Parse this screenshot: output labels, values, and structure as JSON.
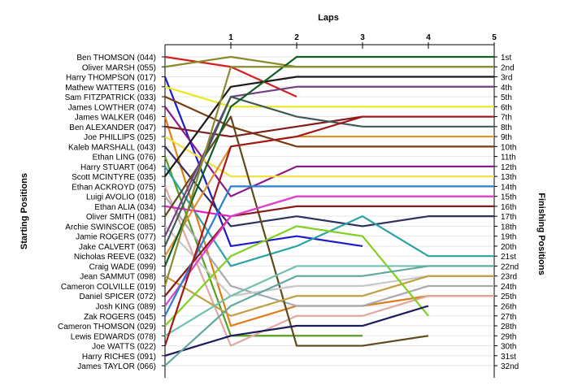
{
  "chart_data": {
    "type": "line",
    "title": "Laps",
    "ylabel_left": "Starting Positions",
    "ylabel_right": "Finishing Positions",
    "x": [
      0,
      1,
      2,
      3,
      4,
      5
    ],
    "x_tick_labels": [
      "1",
      "2",
      "3",
      "4",
      "5"
    ],
    "ylim": [
      1,
      32
    ],
    "grid": true,
    "y_inverted": true,
    "finishing_labels": [
      "1st",
      "2nd",
      "3rd",
      "4th",
      "5th",
      "6th",
      "7th",
      "8th",
      "9th",
      "10th",
      "11th",
      "12th",
      "13th",
      "14th",
      "15th",
      "16th",
      "17th",
      "18th",
      "19th",
      "20th",
      "21st",
      "22nd",
      "23rd",
      "24th",
      "25th",
      "26th",
      "27th",
      "28th",
      "29th",
      "30th",
      "31st",
      "32nd"
    ],
    "series": [
      {
        "name": "Ben THOMSON (044)",
        "color": "#d22020",
        "values": [
          1,
          2,
          5,
          null,
          null,
          null
        ]
      },
      {
        "name": "Oliver MARSH (055)",
        "color": "#8a8a2a",
        "values": [
          2,
          1,
          2,
          2,
          2,
          2
        ]
      },
      {
        "name": "Harry THOMPSON (017)",
        "color": "#1c1cc8",
        "values": [
          3,
          20,
          19,
          20,
          null,
          null
        ]
      },
      {
        "name": "Mathew WATTERS (016)",
        "color": "#e8e81a",
        "values": [
          4,
          6,
          6,
          6,
          6,
          6
        ]
      },
      {
        "name": "Sam FITZPATRICK (033)",
        "color": "#7a3c12",
        "values": [
          5,
          8,
          10,
          10,
          10,
          10
        ]
      },
      {
        "name": "James LOWTHER (074)",
        "color": "#8c1c8c",
        "values": [
          6,
          15,
          12,
          12,
          12,
          12
        ]
      },
      {
        "name": "James WALKER (046)",
        "color": "#e07c1a",
        "values": [
          7,
          28,
          26,
          26,
          25,
          25
        ]
      },
      {
        "name": "Ben ALEXANDER (047)",
        "color": "#801c1c",
        "values": [
          8,
          9,
          8,
          7,
          7,
          7
        ]
      },
      {
        "name": "Joe PHILLIPS (025)",
        "color": "#f0e040",
        "values": [
          9,
          13,
          13,
          13,
          13,
          13
        ]
      },
      {
        "name": "Kaleb MARSHALL (043)",
        "color": "#303060",
        "values": [
          10,
          18,
          17,
          18,
          17,
          17
        ]
      },
      {
        "name": "Ethan LING (076)",
        "color": "#58a020",
        "values": [
          11,
          29,
          29,
          29,
          null,
          null
        ]
      },
      {
        "name": "Harry STUART (064)",
        "color": "#2ca3a3",
        "values": [
          12,
          22,
          20,
          17,
          21,
          21
        ]
      },
      {
        "name": "Scott MCINTYRE (035)",
        "color": "#1a1a1a",
        "values": [
          13,
          4,
          3,
          3,
          3,
          3
        ]
      },
      {
        "name": "Ethan ACKROYD (075)",
        "color": "#e0a8a0",
        "values": [
          14,
          30,
          27,
          27,
          25,
          25
        ]
      },
      {
        "name": "Luigi AVOLIO (018)",
        "color": "#a8a8b0",
        "values": [
          15,
          24,
          26,
          26,
          24,
          24
        ]
      },
      {
        "name": "Ethan ALIA (034)",
        "color": "#e020c8",
        "values": [
          16,
          17,
          15,
          15,
          15,
          15
        ]
      },
      {
        "name": "Oliver SMITH (081)",
        "color": "#5f4a1e",
        "values": [
          17,
          7,
          30,
          30,
          29,
          null
        ]
      },
      {
        "name": "Archie SWINSCOE (085)",
        "color": "#c8c8c8",
        "values": [
          18,
          25,
          24,
          24,
          23,
          23
        ]
      },
      {
        "name": "Jamie ROGERS (077)",
        "color": "#704080",
        "values": [
          19,
          5,
          4,
          4,
          4,
          4
        ]
      },
      {
        "name": "Jake CALVERT (063)",
        "color": "#405a5a",
        "values": [
          20,
          5,
          7,
          8,
          8,
          8
        ]
      },
      {
        "name": "Nicholas REEVE (032)",
        "color": "#e09030",
        "values": [
          21,
          10,
          9,
          9,
          9,
          9
        ]
      },
      {
        "name": "Craig WADE (099)",
        "color": "#106020",
        "values": [
          22,
          6,
          1,
          1,
          1,
          1
        ]
      },
      {
        "name": "Jean SAMMUT (098)",
        "color": "#c0a040",
        "values": [
          23,
          27,
          25,
          25,
          23,
          23
        ]
      },
      {
        "name": "Cameron COLVILLE (019)",
        "color": "#8a8a30",
        "values": [
          24,
          2,
          2,
          2,
          2,
          2
        ]
      },
      {
        "name": "Daniel SPICER (072)",
        "color": "#8a1a1a",
        "values": [
          25,
          17,
          16,
          16,
          16,
          16
        ]
      },
      {
        "name": "Josh KING (089)",
        "color": "#e040d0",
        "values": [
          26,
          17,
          15,
          15,
          15,
          15
        ]
      },
      {
        "name": "Zak ROGERS (045)",
        "color": "#2a80d0",
        "values": [
          27,
          14,
          14,
          14,
          14,
          14
        ]
      },
      {
        "name": "Cameron THOMSON (029)",
        "color": "#80d020",
        "values": [
          28,
          21,
          18,
          19,
          27,
          null
        ]
      },
      {
        "name": "Lewis EDWARDS (078)",
        "color": "#70c0b0",
        "values": [
          29,
          25,
          22,
          22,
          22,
          22
        ]
      },
      {
        "name": "Joe WATTS (022)",
        "color": "#a01818",
        "values": [
          30,
          10,
          9,
          7,
          7,
          7
        ]
      },
      {
        "name": "Harry RICHES (091)",
        "color": "#1c1c5c",
        "values": [
          31,
          29,
          28,
          28,
          26,
          null
        ]
      },
      {
        "name": "James TAYLOR (066)",
        "color": "#60a8a0",
        "values": [
          32,
          26,
          23,
          23,
          22,
          22
        ]
      }
    ]
  }
}
